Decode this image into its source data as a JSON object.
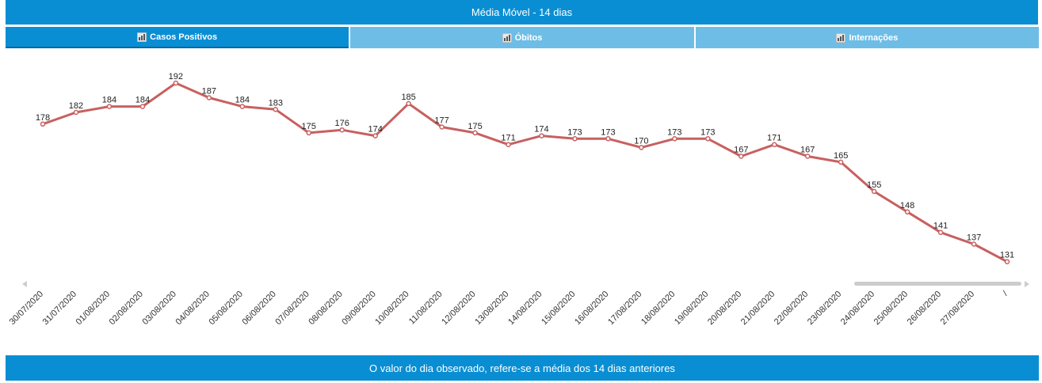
{
  "header": {
    "title": "Média Móvel - 14 dias"
  },
  "tabs": [
    {
      "label": "Casos Positivos",
      "icon": "bar-chart-icon",
      "active": true
    },
    {
      "label": "Óbitos",
      "icon": "bar-chart-icon",
      "active": false
    },
    {
      "label": "Internações",
      "icon": "bar-chart-icon",
      "active": false
    }
  ],
  "footer": {
    "text": "O valor do dia observado, refere-se a média dos 14 dias anteriores"
  },
  "colors": {
    "accent": "#0a8ed3",
    "tab_inactive": "#6ebde6",
    "series": "#c86060"
  },
  "chart_data": {
    "type": "line",
    "title": "",
    "xlabel": "",
    "ylabel": "",
    "categories": [
      "30/07/2020",
      "31/07/2020",
      "01/08/2020",
      "02/08/2020",
      "03/08/2020",
      "04/08/2020",
      "05/08/2020",
      "06/08/2020",
      "07/08/2020",
      "08/08/2020",
      "09/08/2020",
      "10/08/2020",
      "11/08/2020",
      "12/08/2020",
      "13/08/2020",
      "14/08/2020",
      "15/08/2020",
      "16/08/2020",
      "17/08/2020",
      "18/08/2020",
      "19/08/2020",
      "20/08/2020",
      "21/08/2020",
      "22/08/2020",
      "23/08/2020",
      "24/08/2020",
      "25/08/2020",
      "26/08/2020",
      "27/08/2020",
      "/"
    ],
    "series": [
      {
        "values": [
          178,
          182,
          184,
          184,
          192,
          187,
          184,
          183,
          175,
          176,
          174,
          185,
          177,
          175,
          171,
          174,
          173,
          173,
          170,
          173,
          173,
          167,
          171,
          167,
          165,
          155,
          148,
          141,
          137,
          131
        ]
      }
    ],
    "ylim": [
      0,
      200
    ],
    "grid": false,
    "legend": "none",
    "data_labels": true,
    "scrollbar": true
  }
}
